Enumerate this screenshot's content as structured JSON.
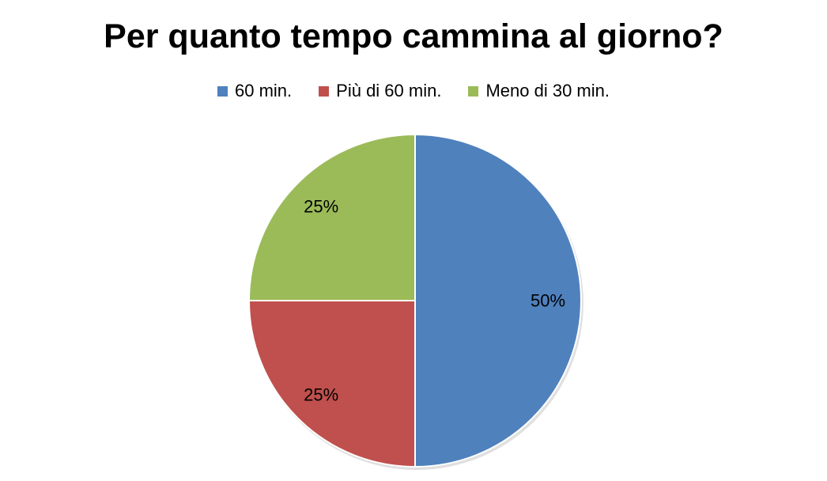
{
  "chart_data": {
    "type": "pie",
    "title": "Per quanto tempo cammina al giorno?",
    "legend_position": "top",
    "slices": [
      {
        "name": "60 min.",
        "value": 50,
        "label": "50%",
        "color": "#4F81BD"
      },
      {
        "name": "Più di 60 min.",
        "value": 25,
        "label": "25%",
        "color": "#C0504D"
      },
      {
        "name": "Meno di 30 min.",
        "value": 25,
        "label": "25%",
        "color": "#9BBB59"
      }
    ]
  }
}
